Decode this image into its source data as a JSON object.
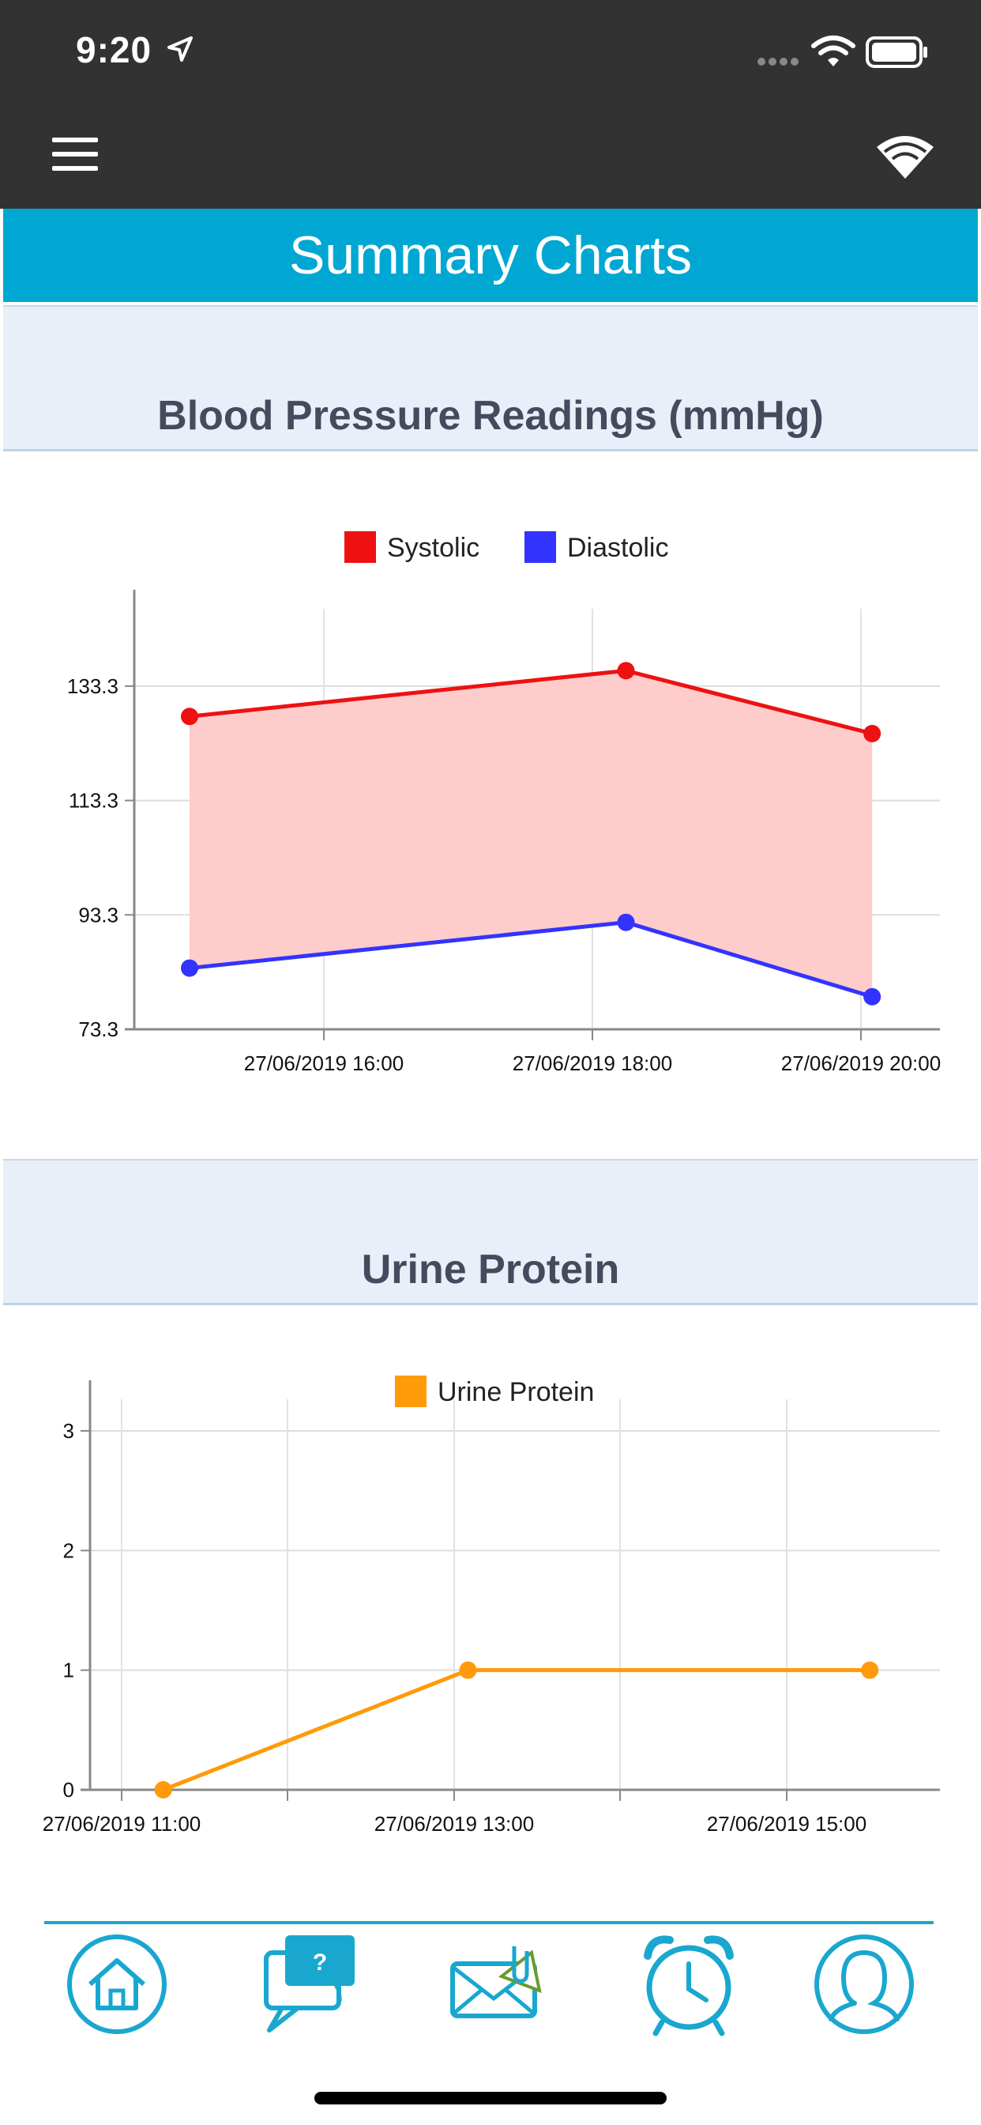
{
  "status_bar": {
    "time": "9:20"
  },
  "header": {
    "title": "Summary Charts"
  },
  "bp_section": {
    "title": "Blood Pressure Readings (mmHg)"
  },
  "urine_section": {
    "title": "Urine Protein"
  },
  "chart_data": [
    {
      "type": "line",
      "x_labels": [
        "27/06/2019 16:00",
        "27/06/2019 18:00",
        "27/06/2019 20:00"
      ],
      "y_ticks": [
        "133.3",
        "113.3",
        "93.3",
        "73.3"
      ],
      "ylim": [
        73.3,
        141.3
      ],
      "grid": true,
      "legend_position": "top-center",
      "fill_between_series": true,
      "fill_color": "#ffcccc",
      "series": [
        {
          "name": "Systolic",
          "color": "#ee1111",
          "points": [
            {
              "x": "27/06/2019 15:00",
              "y": 128
            },
            {
              "x": "27/06/2019 18:15",
              "y": 136
            },
            {
              "x": "27/06/2019 20:05",
              "y": 125
            }
          ]
        },
        {
          "name": "Diastolic",
          "color": "#3333ff",
          "points": [
            {
              "x": "27/06/2019 15:00",
              "y": 84
            },
            {
              "x": "27/06/2019 18:15",
              "y": 92
            },
            {
              "x": "27/06/2019 20:05",
              "y": 79
            }
          ]
        }
      ]
    },
    {
      "type": "line",
      "x_labels": [
        "27/06/2019 11:00",
        "27/06/2019 13:00",
        "27/06/2019 15:00"
      ],
      "y_ticks": [
        "3",
        "2",
        "1",
        "0"
      ],
      "ylim": [
        0,
        3
      ],
      "grid": true,
      "legend_position": "top-center",
      "series": [
        {
          "name": "Urine Protein",
          "color": "#ff9a0a",
          "points": [
            {
              "x": "27/06/2019 11:15",
              "y": 0
            },
            {
              "x": "27/06/2019 13:05",
              "y": 1
            },
            {
              "x": "27/06/2019 15:30",
              "y": 1
            }
          ]
        }
      ]
    }
  ],
  "bottom_nav": {
    "color": "#1aa7cf",
    "items": [
      {
        "icon": "home-icon"
      },
      {
        "icon": "help-chat-icon"
      },
      {
        "icon": "mail-attachment-icon"
      },
      {
        "icon": "alarm-clock-icon"
      },
      {
        "icon": "profile-icon"
      }
    ]
  }
}
